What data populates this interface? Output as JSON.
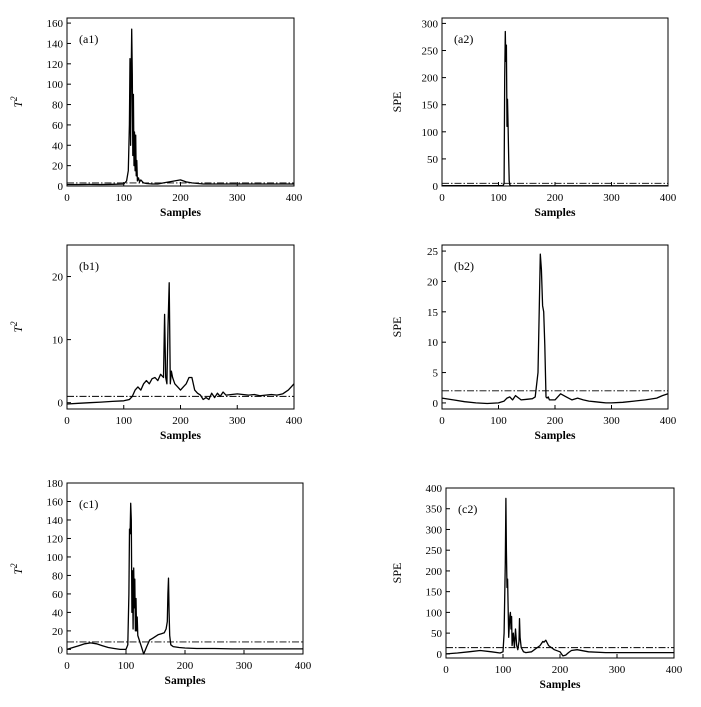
{
  "chart_data": [
    {
      "id": "a1",
      "type": "line",
      "panel_label": "(a1)",
      "xlabel": "Samples",
      "ylabel": "T",
      "ylabel_sup": "2",
      "xlim": [
        0,
        400
      ],
      "ylim": [
        0,
        165
      ],
      "xticks": [
        0,
        100,
        200,
        300,
        400
      ],
      "yticks": [
        0,
        20,
        40,
        60,
        80,
        100,
        120,
        140,
        160
      ],
      "control_limit": 3,
      "series": [
        {
          "x": [
            0,
            20,
            40,
            60,
            80,
            100,
            105,
            108,
            110,
            111,
            112,
            113,
            114,
            115,
            116,
            117,
            118,
            119,
            120,
            121,
            122,
            123,
            124,
            126,
            128,
            130,
            135,
            140,
            150,
            160,
            170,
            180,
            190,
            200,
            205,
            210,
            220,
            240,
            260,
            280,
            300,
            320,
            340,
            360,
            380,
            400
          ],
          "y": [
            1.5,
            1.5,
            1.6,
            1.5,
            1.7,
            2,
            5,
            15,
            60,
            125,
            40,
            100,
            154,
            110,
            30,
            90,
            20,
            53,
            15,
            50,
            10,
            25,
            5,
            8,
            4,
            6,
            3,
            2.5,
            2,
            2,
            3,
            4,
            5,
            6,
            5,
            4,
            3,
            2,
            2,
            2,
            2,
            2,
            2,
            2,
            2,
            2
          ]
        }
      ]
    },
    {
      "id": "a2",
      "type": "line",
      "panel_label": "(a2)",
      "xlabel": "Samples",
      "ylabel": "SPE",
      "ylabel_sup": "",
      "xlim": [
        0,
        400
      ],
      "ylim": [
        0,
        310
      ],
      "xticks": [
        0,
        100,
        200,
        300,
        400
      ],
      "yticks": [
        0,
        50,
        100,
        150,
        200,
        250,
        300
      ],
      "control_limit": 5,
      "series": [
        {
          "x": [
            0,
            50,
            100,
            108,
            110,
            111,
            112,
            113,
            114,
            115,
            116,
            117,
            118,
            119,
            120,
            122,
            130,
            150,
            200,
            250,
            300,
            350,
            400
          ],
          "y": [
            0.5,
            0.5,
            0.5,
            0.5,
            5,
            200,
            285,
            230,
            260,
            110,
            160,
            110,
            50,
            10,
            2,
            0.5,
            0.3,
            0.3,
            0.3,
            0.3,
            0.3,
            0.3,
            0.3
          ]
        }
      ]
    },
    {
      "id": "b1",
      "type": "line",
      "panel_label": "(b1)",
      "xlabel": "Samples",
      "ylabel": "T",
      "ylabel_sup": "2",
      "xlim": [
        0,
        400
      ],
      "ylim": [
        -1,
        25
      ],
      "xticks": [
        0,
        100,
        200,
        300,
        400
      ],
      "yticks": [
        0,
        10,
        20
      ],
      "control_limit": 1,
      "series": [
        {
          "x": [
            0,
            20,
            40,
            60,
            80,
            100,
            110,
            115,
            120,
            125,
            130,
            135,
            140,
            145,
            150,
            155,
            160,
            165,
            170,
            172,
            174,
            176,
            178,
            180,
            182,
            184,
            186,
            190,
            195,
            200,
            205,
            210,
            215,
            220,
            225,
            230,
            235,
            240,
            245,
            250,
            255,
            260,
            265,
            270,
            275,
            280,
            290,
            300,
            310,
            320,
            330,
            340,
            350,
            360,
            370,
            380,
            390,
            395,
            400
          ],
          "y": [
            -0.2,
            -0.1,
            0,
            0.1,
            0.2,
            0.3,
            0.5,
            1,
            2,
            2.5,
            2,
            3,
            3.5,
            3,
            3.8,
            4,
            3.5,
            4.5,
            4,
            14,
            4,
            3,
            12,
            19,
            3,
            5,
            4,
            3,
            2.5,
            2,
            2.5,
            3,
            4,
            4,
            2,
            1.5,
            1.2,
            0.5,
            0.8,
            0.5,
            1.5,
            0.8,
            1.5,
            1,
            1.7,
            1.2,
            1.3,
            1.4,
            1.3,
            1.2,
            1.3,
            1.1,
            1.2,
            1.3,
            1.2,
            1.4,
            2,
            2.5,
            3
          ]
        }
      ]
    },
    {
      "id": "b2",
      "type": "line",
      "panel_label": "(b2)",
      "xlabel": "Samples",
      "ylabel": "SPE",
      "ylabel_sup": "",
      "xlim": [
        0,
        400
      ],
      "ylim": [
        -1,
        26
      ],
      "xticks": [
        0,
        100,
        200,
        300,
        400
      ],
      "yticks": [
        0,
        5,
        10,
        15,
        20,
        25
      ],
      "control_limit": 2,
      "series": [
        {
          "x": [
            0,
            20,
            40,
            60,
            80,
            100,
            110,
            115,
            120,
            125,
            130,
            140,
            150,
            160,
            165,
            170,
            172,
            174,
            176,
            178,
            180,
            182,
            184,
            186,
            188,
            190,
            200,
            210,
            220,
            230,
            240,
            250,
            260,
            270,
            280,
            290,
            300,
            320,
            340,
            360,
            380,
            390,
            400
          ],
          "y": [
            0.8,
            0.5,
            0.2,
            0,
            -0.1,
            0,
            0.3,
            0.8,
            1,
            0.5,
            1.2,
            0.5,
            0.6,
            0.7,
            1,
            5,
            15,
            24.5,
            22,
            16,
            15,
            9.5,
            1,
            0.8,
            1,
            0.5,
            0.5,
            1.5,
            1,
            0.5,
            0.8,
            0.5,
            0.3,
            0.2,
            0.1,
            0,
            0,
            0.1,
            0.3,
            0.5,
            0.8,
            1.2,
            1.5
          ]
        }
      ]
    },
    {
      "id": "c1",
      "type": "line",
      "panel_label": "(c1)",
      "xlabel": "Samples",
      "ylabel": "T",
      "ylabel_sup": "2",
      "xlim": [
        0,
        400
      ],
      "ylim": [
        -5,
        180
      ],
      "xticks": [
        0,
        100,
        200,
        300,
        400
      ],
      "yticks": [
        0,
        20,
        40,
        60,
        80,
        100,
        120,
        140,
        160,
        180
      ],
      "control_limit": 8,
      "series": [
        {
          "x": [
            0,
            10,
            20,
            30,
            40,
            50,
            60,
            70,
            80,
            90,
            100,
            103,
            105,
            106,
            107,
            108,
            109,
            110,
            111,
            112,
            113,
            114,
            115,
            116,
            117,
            118,
            119,
            120,
            125,
            130,
            135,
            140,
            145,
            150,
            155,
            160,
            165,
            168,
            170,
            171,
            172,
            173,
            174,
            176,
            180,
            190,
            200,
            220,
            250,
            280,
            300,
            320,
            350,
            380,
            400
          ],
          "y": [
            0,
            2,
            4,
            6,
            7,
            6,
            4,
            2,
            1,
            0,
            0,
            5,
            60,
            130,
            125,
            158,
            140,
            40,
            85,
            22,
            88,
            45,
            76,
            20,
            55,
            20,
            35,
            15,
            5,
            -5,
            3,
            10,
            12,
            14,
            16,
            17,
            18,
            22,
            30,
            60,
            77,
            40,
            15,
            5,
            3,
            2,
            1.5,
            1,
            1,
            0.5,
            0.5,
            0.5,
            0.5,
            0.5,
            0.5
          ]
        }
      ]
    },
    {
      "id": "c2",
      "type": "line",
      "panel_label": "(c2)",
      "xlabel": "Samples",
      "ylabel": "SPE",
      "ylabel_sup": "",
      "xlim": [
        0,
        400
      ],
      "ylim": [
        -10,
        400
      ],
      "xticks": [
        0,
        100,
        200,
        300,
        400
      ],
      "yticks": [
        0,
        50,
        100,
        150,
        200,
        250,
        300,
        350,
        400
      ],
      "control_limit": 15,
      "series": [
        {
          "x": [
            0,
            20,
            40,
            60,
            80,
            95,
            100,
            102,
            104,
            105,
            106,
            107,
            108,
            110,
            112,
            113,
            114,
            115,
            116,
            118,
            120,
            122,
            124,
            126,
            128,
            129,
            130,
            132,
            134,
            136,
            140,
            150,
            160,
            165,
            170,
            172,
            175,
            178,
            180,
            185,
            190,
            200,
            205,
            210,
            215,
            220,
            230,
            250,
            280,
            300,
            350,
            400
          ],
          "y": [
            0,
            2,
            5,
            8,
            5,
            2,
            5,
            50,
            220,
            375,
            250,
            160,
            180,
            40,
            90,
            100,
            60,
            90,
            20,
            50,
            15,
            60,
            20,
            10,
            30,
            85,
            40,
            15,
            10,
            5,
            3,
            5,
            15,
            20,
            30,
            28,
            33,
            25,
            20,
            15,
            10,
            5,
            -5,
            -3,
            3,
            8,
            10,
            5,
            3,
            3,
            3,
            3
          ]
        }
      ]
    }
  ]
}
